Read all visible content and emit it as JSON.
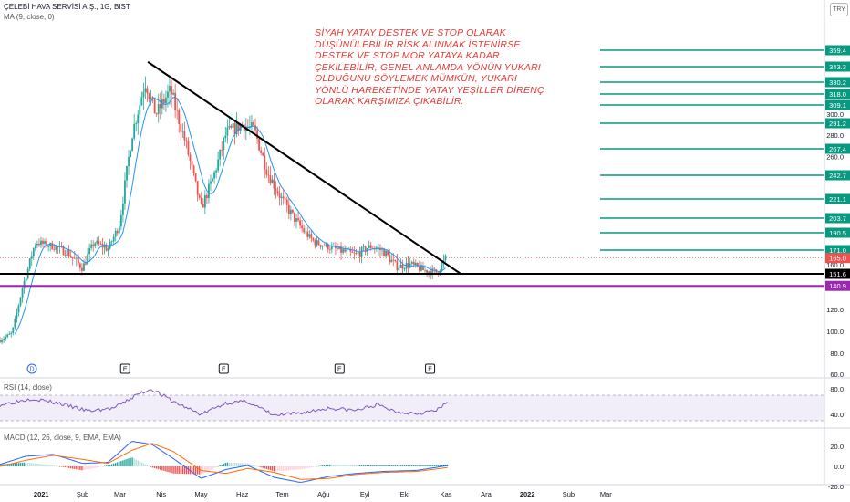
{
  "header": {
    "symbol_line": "ÇELEBİ HAVA SERVİSİ A.Ş., 1G, BIST",
    "ma_label": "MA (9, close, 0)",
    "rsi_label": "RSI (14, close)",
    "macd_label": "MACD (12, 26, close, 9, EMA, EMA)",
    "currency": "TRY"
  },
  "annotation": {
    "lines": [
      "SİYAH YATAY DESTEK VE STOP OLARAK",
      "DÜŞÜNÜLEBİLİR RİSK ALINMAK İSTENİRSE",
      "DESTEK VE STOP MOR YATAYA KADAR",
      "ÇEKİLEBİLİR, GENEL ANLAMDA YÖNÜN YUKARI",
      "OLDUĞUNU SÖYLEMEK MÜMKÜN, YUKARI",
      "YÖNLÜ HAREKETİNDE YATAY YEŞİLLER DİRENÇ",
      "OLARAK KARŞIMIZA ÇIKABİLİR."
    ],
    "color": "#e53935"
  },
  "colors": {
    "up": "#26a69a",
    "down": "#ef5350",
    "ma": "#2196f3",
    "black_line": "#000000",
    "purple_line": "#9c27b0",
    "green_level": "#089981",
    "rsi": "#7e57c2",
    "macd": "#2962ff",
    "signal": "#ff6d00"
  },
  "chart_data": [
    {
      "type": "candlestick",
      "y_axis_ticks": [
        60.0,
        80.0,
        100.0,
        120.0,
        140.0,
        160.0,
        190.0,
        220.0,
        260.0,
        280.0,
        300.0
      ],
      "y_axis_tick_labels": [
        "60.0",
        "80.0",
        "100.0",
        "120.0",
        "140.0",
        "160.0",
        "190.0",
        "220.0",
        "260.0",
        "280.0",
        "300.0"
      ],
      "x_axis_labels": [
        "2021",
        "Şub",
        "Mar",
        "Nis",
        "May",
        "Haz",
        "Tem",
        "Ağu",
        "Eyl",
        "Eki",
        "Kas",
        "Ara",
        "2022",
        "Şub",
        "Mar"
      ],
      "resistance_levels": [
        359.4,
        343.3,
        330.2,
        318.0,
        309.1,
        291.2,
        267.4,
        242.7,
        221.1,
        203.7,
        190.5,
        171.0
      ],
      "resistance_labels": [
        "359.4",
        "343.3",
        "330.2",
        "318.0",
        "309.1",
        "291.2",
        "267.4",
        "242.7",
        "221.1",
        "203.7",
        "190.5",
        "171.0"
      ],
      "support_black": 151.6,
      "support_black_label": "151.6",
      "support_purple": 140.9,
      "support_purple_label": "140.9",
      "last_price": 165.0,
      "last_price_label": "165.0",
      "trendline": {
        "from": {
          "date": "2021-03-22",
          "price": 348.0
        },
        "to": {
          "date": "2021-11-12",
          "price": 151.6
        }
      },
      "event_markers": [
        {
          "date": "2020-12-25",
          "label": "D"
        },
        {
          "date": "2021-03-05",
          "label": "E"
        },
        {
          "date": "2021-05-18",
          "label": "E"
        },
        {
          "date": "2021-08-13",
          "label": "E"
        },
        {
          "date": "2021-10-20",
          "label": "E"
        }
      ],
      "price_path": [
        {
          "date": "2020-12-01",
          "close": 92
        },
        {
          "date": "2020-12-10",
          "close": 98
        },
        {
          "date": "2020-12-18",
          "close": 140
        },
        {
          "date": "2020-12-28",
          "close": 180
        },
        {
          "date": "2021-01-08",
          "close": 176
        },
        {
          "date": "2021-01-20",
          "close": 170
        },
        {
          "date": "2021-02-01",
          "close": 157
        },
        {
          "date": "2021-02-10",
          "close": 180
        },
        {
          "date": "2021-02-20",
          "close": 172
        },
        {
          "date": "2021-03-01",
          "close": 200
        },
        {
          "date": "2021-03-10",
          "close": 280
        },
        {
          "date": "2021-03-20",
          "close": 330
        },
        {
          "date": "2021-03-28",
          "close": 300
        },
        {
          "date": "2021-04-08",
          "close": 322
        },
        {
          "date": "2021-04-20",
          "close": 270
        },
        {
          "date": "2021-05-01",
          "close": 212
        },
        {
          "date": "2021-05-10",
          "close": 240
        },
        {
          "date": "2021-05-20",
          "close": 282
        },
        {
          "date": "2021-06-01",
          "close": 290
        },
        {
          "date": "2021-06-10",
          "close": 285
        },
        {
          "date": "2021-06-20",
          "close": 245
        },
        {
          "date": "2021-07-01",
          "close": 220
        },
        {
          "date": "2021-07-12",
          "close": 200
        },
        {
          "date": "2021-07-25",
          "close": 180
        },
        {
          "date": "2021-08-10",
          "close": 172
        },
        {
          "date": "2021-08-25",
          "close": 167
        },
        {
          "date": "2021-09-05",
          "close": 175
        },
        {
          "date": "2021-09-15",
          "close": 170
        },
        {
          "date": "2021-09-25",
          "close": 158
        },
        {
          "date": "2021-10-05",
          "close": 160
        },
        {
          "date": "2021-10-15",
          "close": 155
        },
        {
          "date": "2021-10-25",
          "close": 153
        },
        {
          "date": "2021-11-01",
          "close": 165
        }
      ]
    },
    {
      "type": "line",
      "name": "RSI",
      "y_axis_ticks": [
        40.0,
        80.0
      ],
      "y_axis_tick_labels": [
        "40.0",
        "80.0"
      ],
      "band": [
        30,
        70
      ],
      "x": [
        "2020-12-01",
        "2020-12-25",
        "2021-01-15",
        "2021-02-05",
        "2021-02-25",
        "2021-03-15",
        "2021-03-25",
        "2021-04-10",
        "2021-05-01",
        "2021-05-20",
        "2021-06-05",
        "2021-06-25",
        "2021-07-15",
        "2021-08-05",
        "2021-08-25",
        "2021-09-10",
        "2021-09-25",
        "2021-10-10",
        "2021-10-25",
        "2021-11-03"
      ],
      "values": [
        55,
        65,
        57,
        45,
        50,
        72,
        80,
        60,
        40,
        58,
        60,
        38,
        42,
        50,
        46,
        55,
        44,
        42,
        46,
        60
      ]
    },
    {
      "type": "line",
      "name": "MACD",
      "y_axis_ticks": [
        -20.0,
        0.0,
        20.0
      ],
      "y_axis_tick_labels": [
        "-20.0",
        "0.0",
        "20.0"
      ],
      "x": [
        "2020-12-01",
        "2020-12-20",
        "2021-01-10",
        "2021-02-01",
        "2021-02-20",
        "2021-03-10",
        "2021-03-25",
        "2021-04-10",
        "2021-05-01",
        "2021-05-20",
        "2021-06-05",
        "2021-06-25",
        "2021-07-15",
        "2021-08-05",
        "2021-08-25",
        "2021-09-15",
        "2021-10-10",
        "2021-11-03"
      ],
      "macd": [
        2,
        10,
        12,
        3,
        4,
        25,
        22,
        8,
        -12,
        -3,
        1,
        -11,
        -16,
        -10,
        -7,
        -5,
        -4,
        1
      ],
      "signal": [
        0,
        6,
        11,
        7,
        3,
        16,
        23,
        15,
        -4,
        -7,
        -2,
        -6,
        -13,
        -12,
        -8,
        -6,
        -5,
        -1
      ]
    }
  ]
}
